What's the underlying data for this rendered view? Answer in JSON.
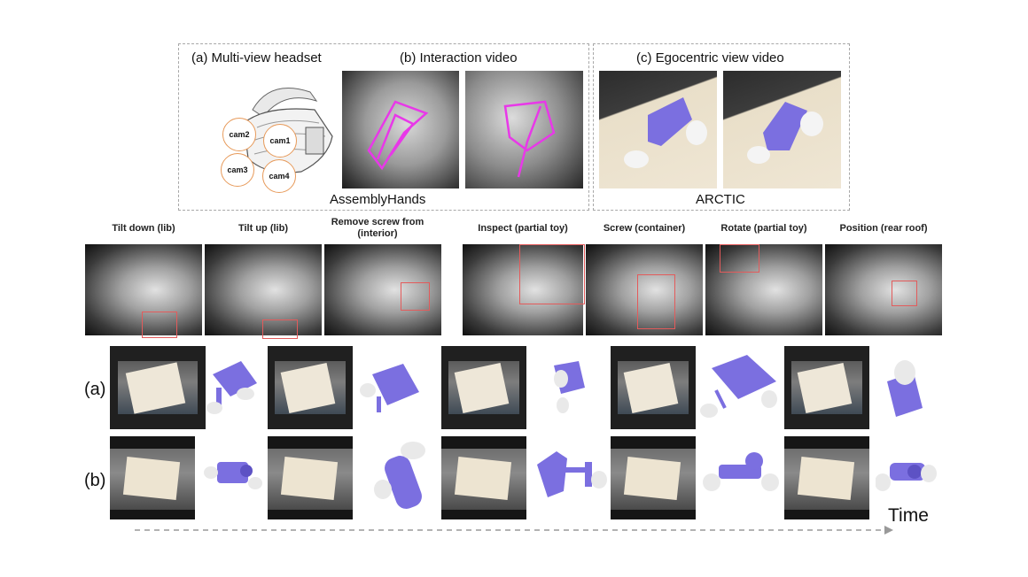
{
  "panels": {
    "a_title": "(a) Multi-view headset",
    "b_title": "(b) Interaction video",
    "c_title": "(c) Egocentric view video",
    "dataset_left": "AssemblyHands",
    "dataset_right": "ARCTIC",
    "cams": [
      "cam2",
      "cam1",
      "cam3",
      "cam4"
    ]
  },
  "actions": [
    "Tilt down (lib)",
    "Tilt up (lib)",
    "Remove screw from (interior)",
    "Inspect (partial toy)",
    "Screw (container)",
    "Rotate (partial toy)",
    "Position (rear roof)"
  ],
  "rows": {
    "a": "(a)",
    "b": "(b)"
  },
  "time_label": "Time",
  "colors": {
    "keypoint": "#e838e8",
    "object": "#7b6fe0",
    "box": "#e35b5b"
  }
}
